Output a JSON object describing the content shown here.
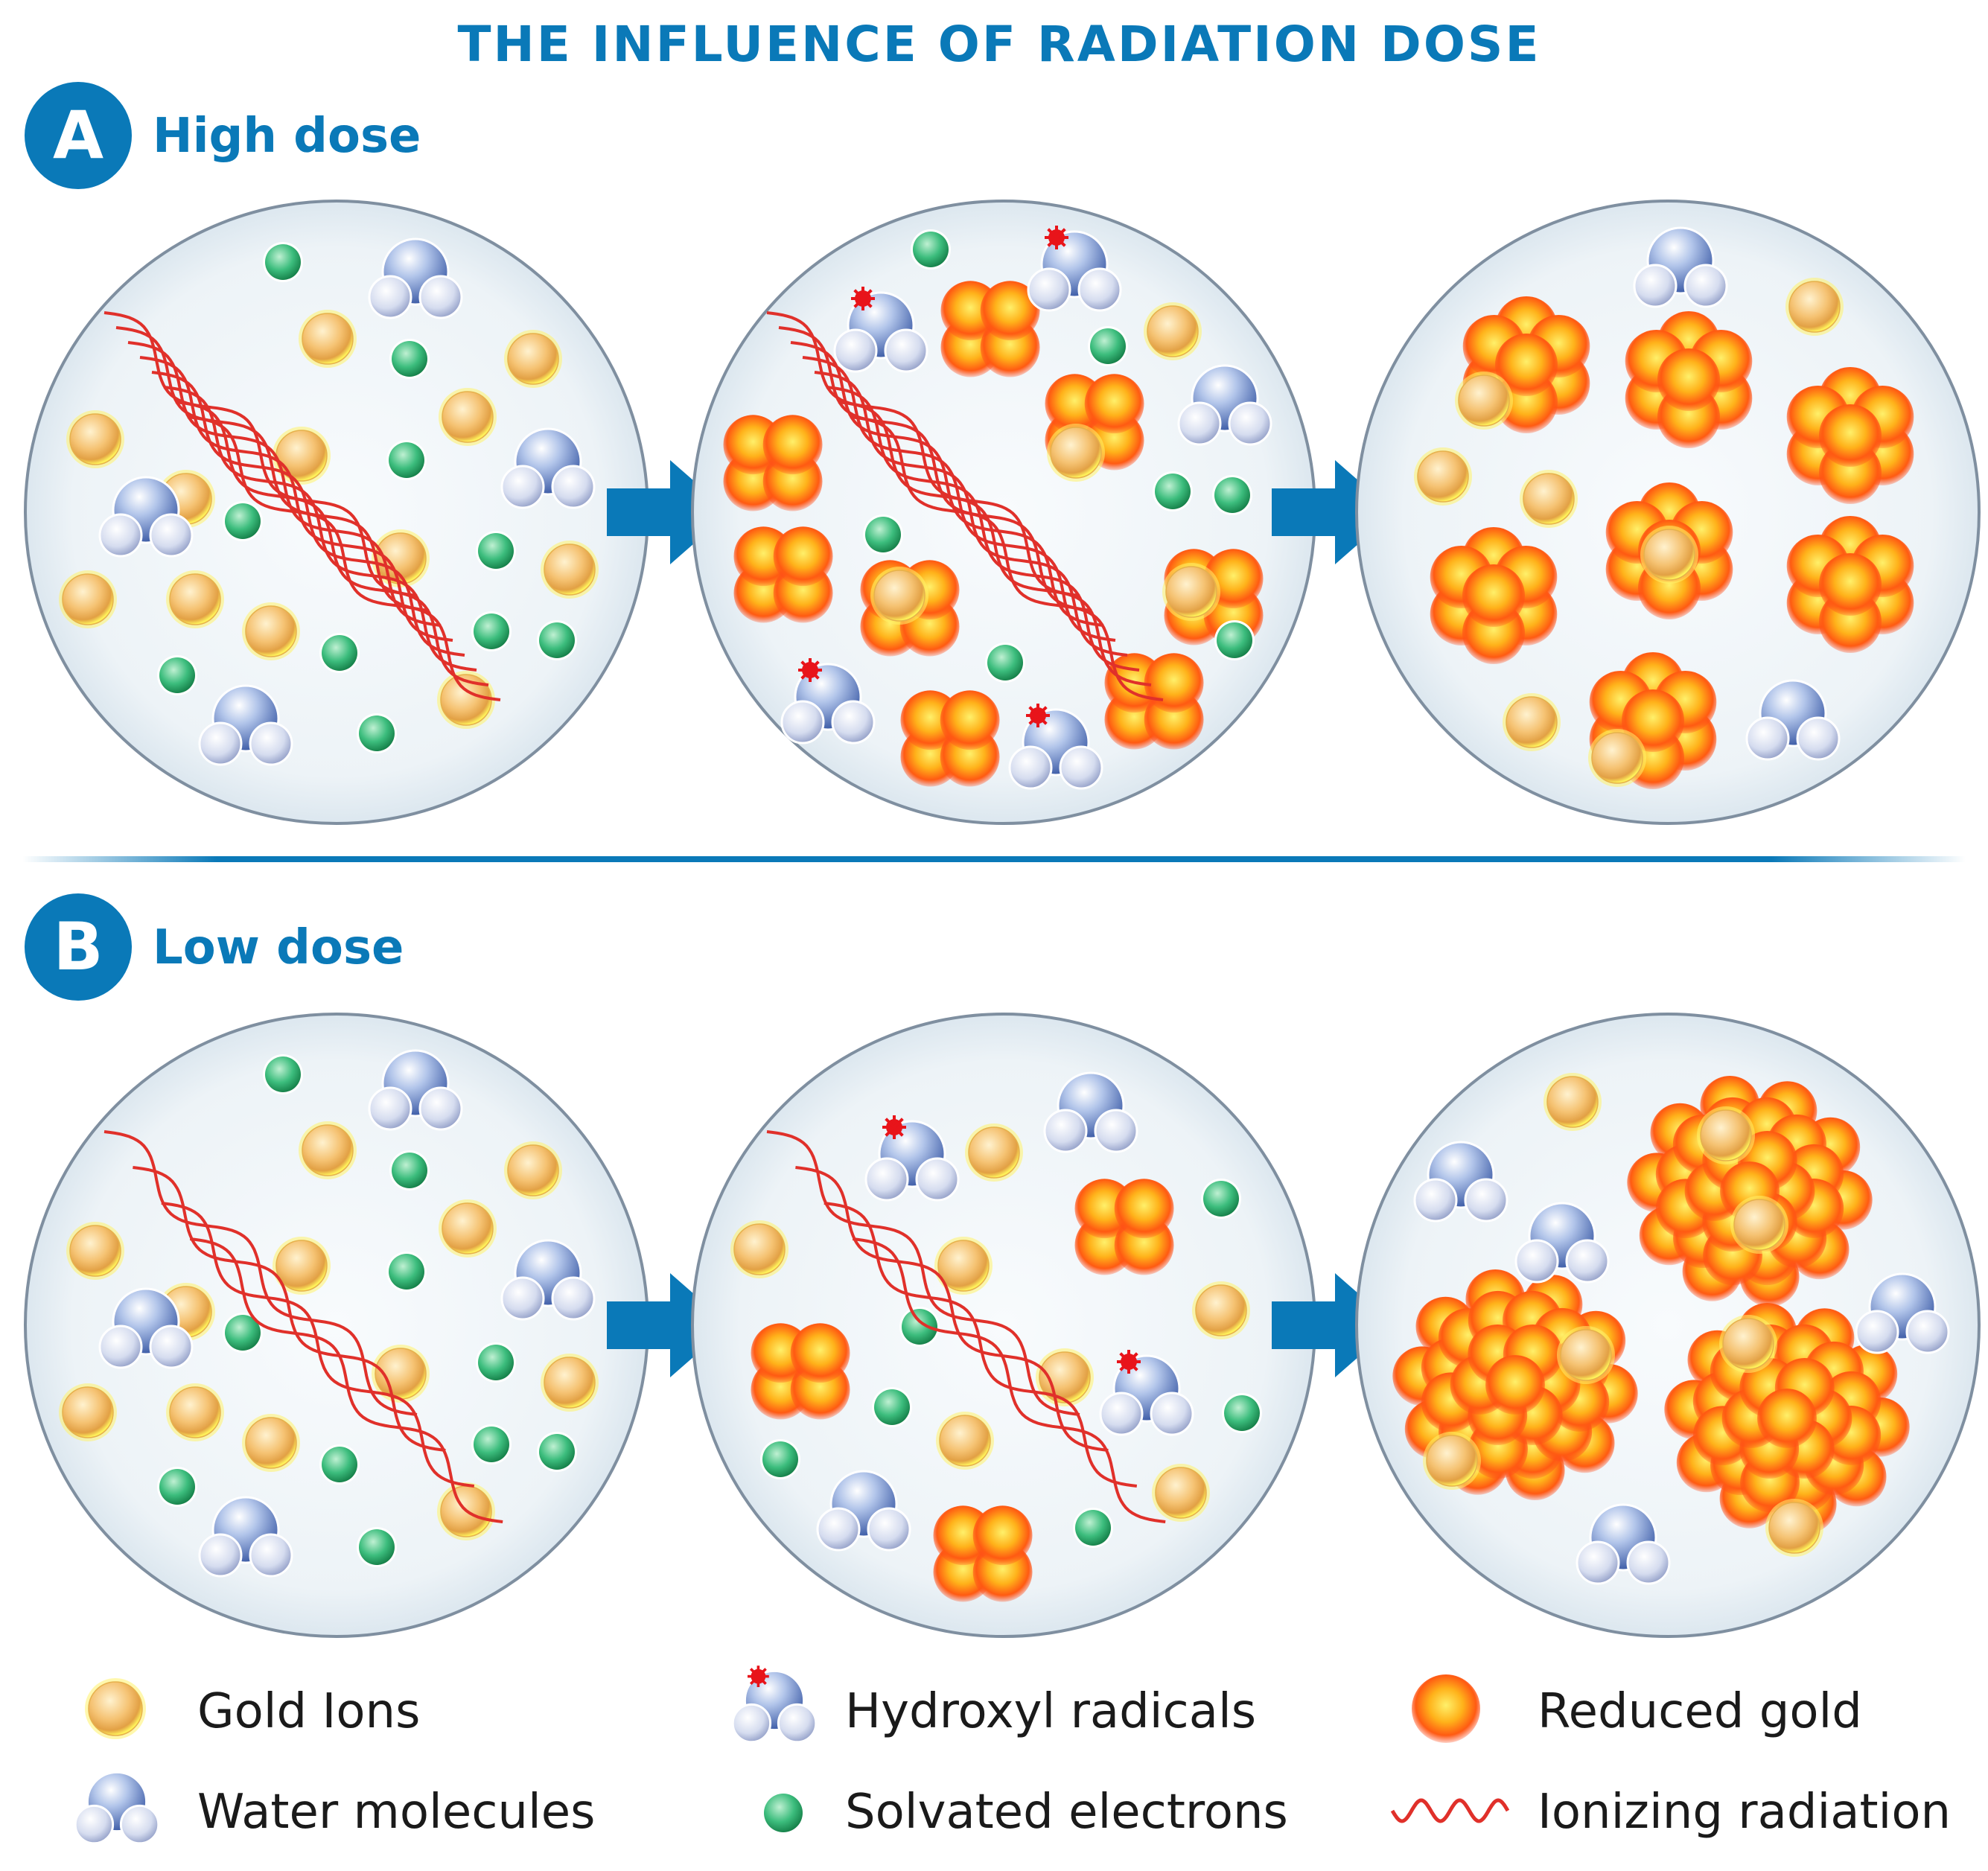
{
  "title": "THE INFLUENCE OF RADIATION DOSE",
  "sections": [
    {
      "letter": "A",
      "label": "High dose"
    },
    {
      "letter": "B",
      "label": "Low dose"
    }
  ],
  "legend": [
    {
      "icon": "gold-ion-icon",
      "label": "Gold Ions"
    },
    {
      "icon": "hydroxyl-radical-icon",
      "label": "Hydroxyl radicals"
    },
    {
      "icon": "reduced-gold-icon",
      "label": "Reduced gold"
    },
    {
      "icon": "water-molecule-icon",
      "label": "Water molecules"
    },
    {
      "icon": "solvated-electron-icon",
      "label": "Solvated electrons"
    },
    {
      "icon": "ionizing-radiation-icon",
      "label": "Ionizing radiation"
    }
  ],
  "colors": {
    "accent": "#0a79b8",
    "gold_ion": "#f6c97b",
    "reduced_gold": "#ff9c1a",
    "water": "#6f8fc9",
    "electron": "#2aa86a",
    "radiation": "#e0302a",
    "radical_dot": "#e8141a"
  }
}
